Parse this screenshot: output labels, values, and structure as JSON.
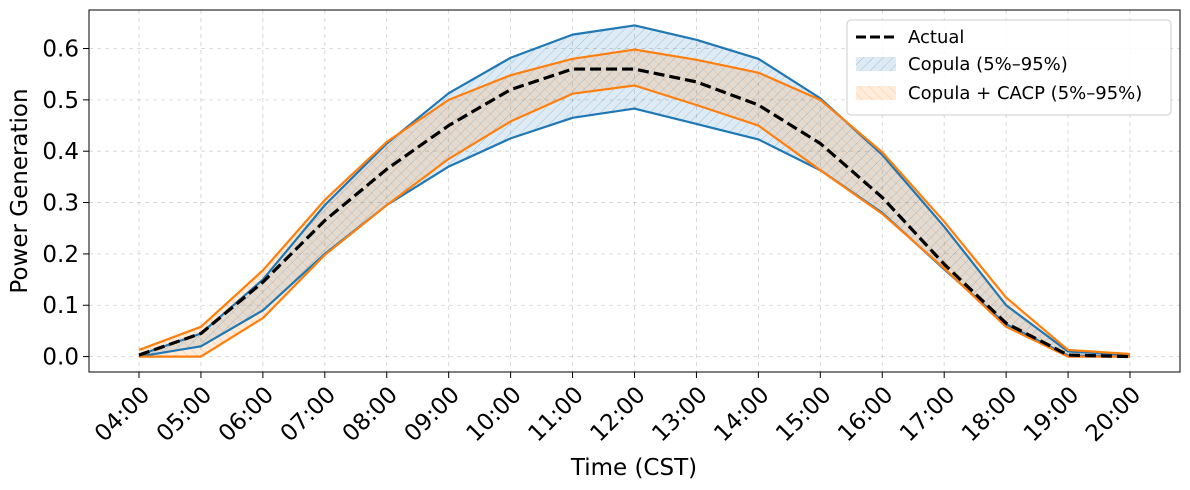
{
  "chart_data": {
    "type": "line",
    "xlabel": "Time (CST)",
    "ylabel": "Power Generation",
    "categories": [
      "04:00",
      "05:00",
      "06:00",
      "07:00",
      "08:00",
      "09:00",
      "10:00",
      "11:00",
      "12:00",
      "13:00",
      "14:00",
      "15:00",
      "16:00",
      "17:00",
      "18:00",
      "19:00",
      "20:00"
    ],
    "ylim": [
      -0.03,
      0.675
    ],
    "yticks": [
      "0.0",
      "0.1",
      "0.2",
      "0.3",
      "0.4",
      "0.5",
      "0.6"
    ],
    "grid": true,
    "legend_position": "top-right",
    "series": [
      {
        "name": "Actual",
        "kind": "line",
        "style": "dashed",
        "color": "#000000",
        "values": [
          0.003,
          0.045,
          0.145,
          0.265,
          0.365,
          0.45,
          0.52,
          0.56,
          0.56,
          0.535,
          0.49,
          0.415,
          0.31,
          0.18,
          0.065,
          0.003,
          0.0
        ]
      },
      {
        "name": "Copula (5%–95%)",
        "kind": "band",
        "color": "#1f77b4",
        "lower": [
          0.0,
          0.02,
          0.09,
          0.2,
          0.295,
          0.37,
          0.425,
          0.465,
          0.483,
          0.453,
          0.423,
          0.363,
          0.28,
          0.17,
          0.063,
          0.002,
          0.0
        ],
        "upper": [
          0.003,
          0.045,
          0.15,
          0.295,
          0.415,
          0.513,
          0.582,
          0.627,
          0.645,
          0.617,
          0.58,
          0.503,
          0.393,
          0.253,
          0.1,
          0.01,
          0.003
        ]
      },
      {
        "name": "Copula + CACP (5%–95%)",
        "kind": "band",
        "color": "#ff7f0e",
        "lower": [
          0.0,
          0.0,
          0.075,
          0.198,
          0.295,
          0.385,
          0.458,
          0.512,
          0.528,
          0.49,
          0.45,
          0.363,
          0.278,
          0.172,
          0.058,
          0.0,
          0.0
        ],
        "upper": [
          0.013,
          0.058,
          0.168,
          0.305,
          0.418,
          0.5,
          0.548,
          0.58,
          0.598,
          0.578,
          0.553,
          0.5,
          0.398,
          0.263,
          0.115,
          0.013,
          0.005
        ]
      }
    ]
  }
}
